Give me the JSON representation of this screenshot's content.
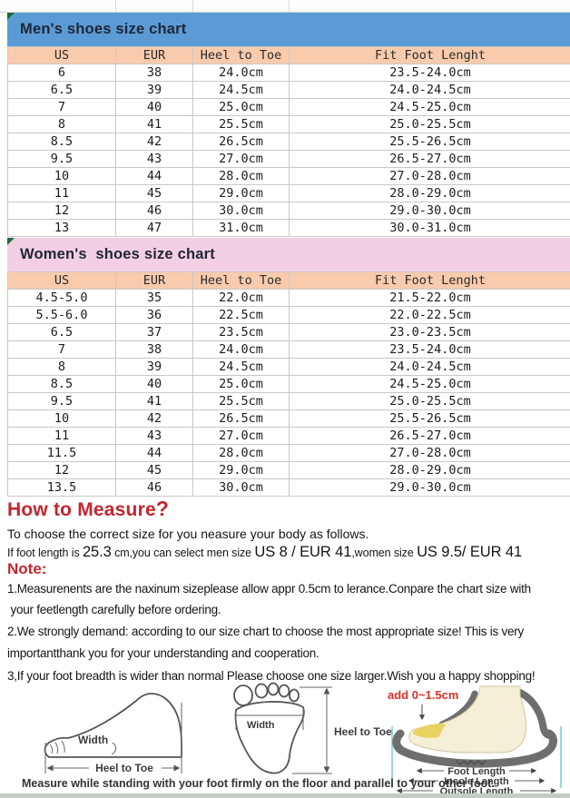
{
  "colors": {
    "men_header_bg": "#5b9bd5",
    "women_header_bg": "#f3cfe3",
    "column_header_bg": "#f8cbad",
    "heading_red": "#c2262e",
    "diagram_red": "#d93025"
  },
  "men": {
    "title": "Men's shoes size chart",
    "columns": [
      "US",
      "EUR",
      "Heel to Toe",
      "Fit Foot Lenght"
    ],
    "rows": [
      [
        "6",
        "38",
        "24.0cm",
        "23.5-24.0cm"
      ],
      [
        "6.5",
        "39",
        "24.5cm",
        "24.0-24.5cm"
      ],
      [
        "7",
        "40",
        "25.0cm",
        "24.5-25.0cm"
      ],
      [
        "8",
        "41",
        "25.5cm",
        "25.0-25.5cm"
      ],
      [
        "8.5",
        "42",
        "26.5cm",
        "25.5-26.5cm"
      ],
      [
        "9.5",
        "43",
        "27.0cm",
        "26.5-27.0cm"
      ],
      [
        "10",
        "44",
        "28.0cm",
        "27.0-28.0cm"
      ],
      [
        "11",
        "45",
        "29.0cm",
        "28.0-29.0cm"
      ],
      [
        "12",
        "46",
        "30.0cm",
        "29.0-30.0cm"
      ],
      [
        "13",
        "47",
        "31.0cm",
        "30.0-31.0cm"
      ]
    ]
  },
  "women": {
    "title": "Women's  shoes size chart",
    "columns": [
      "US",
      "EUR",
      "Heel to Toe",
      "Fit Foot Lenght"
    ],
    "rows": [
      [
        "4.5-5.0",
        "35",
        "22.0cm",
        "21.5-22.0cm"
      ],
      [
        "5.5-6.0",
        "36",
        "22.5cm",
        "22.0-22.5cm"
      ],
      [
        "6.5",
        "37",
        "23.5cm",
        "23.0-23.5cm"
      ],
      [
        "7",
        "38",
        "24.0cm",
        "23.5-24.0cm"
      ],
      [
        "8",
        "39",
        "24.5cm",
        "24.0-24.5cm"
      ],
      [
        "8.5",
        "40",
        "25.0cm",
        "24.5-25.0cm"
      ],
      [
        "9.5",
        "41",
        "25.5cm",
        "25.0-25.5cm"
      ],
      [
        "10",
        "42",
        "26.5cm",
        "25.5-26.5cm"
      ],
      [
        "11",
        "43",
        "27.0cm",
        "26.5-27.0cm"
      ],
      [
        "11.5",
        "44",
        "28.0cm",
        "27.0-28.0cm"
      ],
      [
        "12",
        "45",
        "29.0cm",
        "28.0-29.0cm"
      ],
      [
        "13.5",
        "46",
        "30.0cm",
        "29.0-30.0cm"
      ]
    ]
  },
  "measure": {
    "heading": "How to Measure",
    "heading_mark": "?",
    "intro": "To choose the correct size for you neasure your body as follows.",
    "example": {
      "p1": "If foot length is ",
      "p2": "25.3",
      "p3": " cm,you can select men size ",
      "p4": "US 8 / EUR 41",
      "p5": ",women size ",
      "p6": "US 9.5/ EUR 41"
    },
    "note_label": "Note:",
    "notes": [
      [
        "1.Measurenents are the naxinum sizeplease allow appr 0.5cm to lerance.Conpare the chart size with",
        " your feetlength carefully before ordering."
      ],
      [
        "2.We strongly demand: according to our size chart to choose the most appropriate size! This is very",
        "importantthank you for your understanding and cooperation."
      ],
      [
        "3,If your foot breadth is wider than normal Please choose one size larger.Wish you a happy shopping!"
      ]
    ]
  },
  "diagrams": {
    "side_foot": {
      "width_label": "Width",
      "heel_to_toe_label": "Heel to Toe"
    },
    "footprint": {
      "width_label": "Width",
      "heel_to_toe_label": "Heel to Toe"
    },
    "shoe": {
      "add_label": "add 0~1.5cm",
      "foot_length_label": "Foot Length",
      "insole_length_label": "Insole Length",
      "outsole_length_label": "Outsole Length"
    },
    "caption": "Measure while standing with your foot firmly on the floor and parallel to your other foot."
  }
}
